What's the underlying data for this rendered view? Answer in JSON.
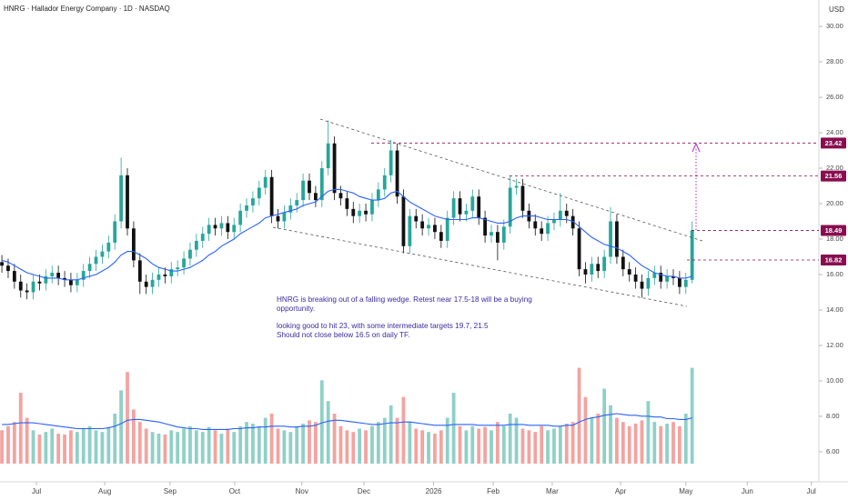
{
  "chart_data": {
    "type": "candlestick",
    "title": "HNRG · Hallador Energy Company · 1D · NASDAQ",
    "currency": "USD",
    "open": [
      16.7,
      16.5,
      16.2,
      15.6,
      15.1,
      15.0,
      15.6,
      15.5,
      15.9,
      16.1,
      15.8,
      15.7,
      15.4,
      15.7,
      16.2,
      16.6,
      17.0,
      17.3,
      17.8,
      19.0,
      21.6,
      18.6,
      16.8,
      15.6,
      15.3,
      15.7,
      16.0,
      15.9,
      16.3,
      16.4,
      16.9,
      17.4,
      17.9,
      18.3,
      18.8,
      18.6,
      18.9,
      18.4,
      18.8,
      19.6,
      19.9,
      20.3,
      20.9,
      21.5,
      19.3,
      19.0,
      19.5,
      19.9,
      20.2,
      21.3,
      20.6,
      20.2,
      22.0,
      23.4,
      20.6,
      20.3,
      19.7,
      19.3,
      19.6,
      19.4,
      20.2,
      20.8,
      21.6,
      23.0,
      20.4,
      17.6,
      19.3,
      19.0,
      18.6,
      18.8,
      18.4,
      17.9,
      19.2,
      20.3,
      19.4,
      19.6,
      20.4,
      19.2,
      18.2,
      18.4,
      17.8,
      18.7,
      20.9,
      21.0,
      19.6,
      19.0,
      18.6,
      18.3,
      18.9,
      19.1,
      19.6,
      19.3,
      18.6,
      16.3,
      16.0,
      16.6,
      16.2,
      17.0,
      19.0,
      17.0,
      16.3,
      16.0,
      15.6,
      15.2,
      15.8,
      16.1,
      15.6,
      15.9,
      15.8,
      15.3,
      15.7
    ],
    "high": [
      17.1,
      16.9,
      16.6,
      16.0,
      15.5,
      16.0,
      16.0,
      16.3,
      16.5,
      16.5,
      16.2,
      16.1,
      16.1,
      16.6,
      17.0,
      17.4,
      17.7,
      18.2,
      19.4,
      22.6,
      22.0,
      19.0,
      17.2,
      16.0,
      16.1,
      16.4,
      16.4,
      16.7,
      16.8,
      17.3,
      17.8,
      18.3,
      18.7,
      19.2,
      19.2,
      19.3,
      19.3,
      19.2,
      20.0,
      20.3,
      20.7,
      21.3,
      21.9,
      21.9,
      19.7,
      19.9,
      20.3,
      20.6,
      21.7,
      21.7,
      21.0,
      22.4,
      24.7,
      23.8,
      21.0,
      20.7,
      20.1,
      20.0,
      20.0,
      20.6,
      21.2,
      22.0,
      23.6,
      23.4,
      20.8,
      19.7,
      19.7,
      19.4,
      19.2,
      19.2,
      18.8,
      19.6,
      20.7,
      20.7,
      20.0,
      20.8,
      20.8,
      19.6,
      18.8,
      18.8,
      19.1,
      21.6,
      21.4,
      21.4,
      20.0,
      19.4,
      19.0,
      19.3,
      19.5,
      20.6,
      20.0,
      19.7,
      19.0,
      16.7,
      17.0,
      17.0,
      17.4,
      19.8,
      19.4,
      17.4,
      16.7,
      16.4,
      16.0,
      16.2,
      16.5,
      16.5,
      16.3,
      16.3,
      16.2,
      16.1,
      19.0
    ],
    "low": [
      16.1,
      15.8,
      15.2,
      14.7,
      14.6,
      14.6,
      15.1,
      15.1,
      15.5,
      15.4,
      15.3,
      15.0,
      15.0,
      15.3,
      15.8,
      16.2,
      16.6,
      16.9,
      17.4,
      18.6,
      18.2,
      16.4,
      14.9,
      14.9,
      14.9,
      15.3,
      15.5,
      15.5,
      15.9,
      16.0,
      16.5,
      17.0,
      17.5,
      17.9,
      18.2,
      18.2,
      18.0,
      18.0,
      18.4,
      19.2,
      19.5,
      19.9,
      20.5,
      18.9,
      18.6,
      18.6,
      19.1,
      19.5,
      19.8,
      20.2,
      19.8,
      19.8,
      21.6,
      20.2,
      19.9,
      19.3,
      18.9,
      18.9,
      19.0,
      19.0,
      19.8,
      20.4,
      21.2,
      20.0,
      17.2,
      17.2,
      18.6,
      18.2,
      18.2,
      18.0,
      17.5,
      17.5,
      18.8,
      19.0,
      19.0,
      19.2,
      18.8,
      17.8,
      17.8,
      16.8,
      17.4,
      18.3,
      20.5,
      19.2,
      18.6,
      18.2,
      17.9,
      17.9,
      18.5,
      18.7,
      18.9,
      18.2,
      15.9,
      15.5,
      15.6,
      15.8,
      15.8,
      16.6,
      16.6,
      15.9,
      15.6,
      15.2,
      14.7,
      14.8,
      15.4,
      15.2,
      15.2,
      15.4,
      14.9,
      14.9,
      15.5
    ],
    "close": [
      16.5,
      16.2,
      15.6,
      15.1,
      15.0,
      15.6,
      15.5,
      15.9,
      16.1,
      15.8,
      15.7,
      15.4,
      15.7,
      16.2,
      16.6,
      17.0,
      17.3,
      17.8,
      19.0,
      21.6,
      18.6,
      16.8,
      15.6,
      15.3,
      15.7,
      16.0,
      15.9,
      16.3,
      16.4,
      16.9,
      17.4,
      17.9,
      18.3,
      18.8,
      18.6,
      18.9,
      18.4,
      18.8,
      19.6,
      19.9,
      20.3,
      20.9,
      21.5,
      19.3,
      19.0,
      19.5,
      19.9,
      20.2,
      21.3,
      20.6,
      20.2,
      22.0,
      23.4,
      20.6,
      20.3,
      19.7,
      19.3,
      19.6,
      19.4,
      20.2,
      20.8,
      21.6,
      23.0,
      20.4,
      17.6,
      19.3,
      19.0,
      18.6,
      18.8,
      18.4,
      17.9,
      19.2,
      20.3,
      19.4,
      19.6,
      20.4,
      19.2,
      18.2,
      18.4,
      17.8,
      18.7,
      20.9,
      21.0,
      19.6,
      19.0,
      18.6,
      18.3,
      18.9,
      19.1,
      19.6,
      19.3,
      18.6,
      16.3,
      16.0,
      16.6,
      16.2,
      17.0,
      19.0,
      17.0,
      16.3,
      16.0,
      15.6,
      15.2,
      15.8,
      16.1,
      15.6,
      15.9,
      15.8,
      15.3,
      15.7,
      18.49
    ],
    "ma": [
      16.8,
      16.7,
      16.5,
      16.3,
      16.1,
      16.0,
      15.9,
      15.8,
      15.8,
      15.8,
      15.7,
      15.7,
      15.7,
      15.8,
      15.9,
      16.0,
      16.2,
      16.4,
      16.7,
      17.1,
      17.3,
      17.3,
      17.1,
      16.9,
      16.6,
      16.4,
      16.3,
      16.2,
      16.2,
      16.3,
      16.4,
      16.6,
      16.8,
      17.1,
      17.3,
      17.6,
      17.8,
      18.0,
      18.3,
      18.5,
      18.7,
      18.9,
      19.2,
      19.3,
      19.4,
      19.5,
      19.6,
      19.7,
      19.9,
      20.0,
      20.1,
      20.4,
      20.7,
      20.8,
      20.8,
      20.7,
      20.6,
      20.4,
      20.3,
      20.2,
      20.2,
      20.3,
      20.6,
      20.7,
      20.4,
      20.1,
      19.9,
      19.7,
      19.5,
      19.3,
      19.2,
      19.1,
      19.1,
      19.1,
      19.1,
      19.2,
      19.2,
      19.1,
      19.0,
      18.9,
      18.9,
      19.0,
      19.2,
      19.3,
      19.3,
      19.3,
      19.2,
      19.1,
      19.1,
      19.1,
      19.1,
      19.0,
      18.7,
      18.4,
      18.1,
      17.9,
      17.7,
      17.6,
      17.5,
      17.3,
      17.1,
      16.8,
      16.5,
      16.3,
      16.1,
      16.0,
      15.9,
      15.9,
      15.8,
      15.8,
      15.9
    ],
    "volume": [
      40,
      45,
      50,
      85,
      55,
      40,
      35,
      38,
      42,
      36,
      35,
      40,
      38,
      42,
      45,
      40,
      38,
      44,
      60,
      88,
      110,
      65,
      50,
      42,
      38,
      36,
      35,
      40,
      38,
      42,
      45,
      40,
      38,
      44,
      40,
      36,
      42,
      38,
      45,
      50,
      48,
      45,
      55,
      60,
      42,
      40,
      38,
      45,
      48,
      52,
      50,
      100,
      75,
      60,
      45,
      40,
      38,
      42,
      40,
      45,
      50,
      55,
      70,
      55,
      80,
      50,
      42,
      40,
      38,
      36,
      40,
      55,
      85,
      45,
      40,
      45,
      42,
      44,
      40,
      50,
      45,
      60,
      55,
      42,
      40,
      38,
      45,
      40,
      42,
      45,
      48,
      50,
      115,
      80,
      55,
      60,
      90,
      70,
      55,
      50,
      45,
      48,
      52,
      75,
      50,
      45,
      48,
      50,
      45,
      60,
      115
    ],
    "volume_ma": [
      47,
      47,
      48,
      49,
      49,
      49,
      48,
      47,
      46,
      45,
      44,
      43,
      42,
      42,
      42,
      42,
      42,
      43,
      45,
      48,
      52,
      53,
      53,
      52,
      51,
      50,
      48,
      46,
      44,
      43,
      42,
      42,
      41,
      41,
      41,
      41,
      41,
      42,
      42,
      43,
      43,
      44,
      44,
      45,
      45,
      45,
      44,
      44,
      45,
      45,
      46,
      49,
      51,
      52,
      52,
      51,
      50,
      49,
      48,
      47,
      47,
      48,
      49,
      49,
      50,
      50,
      49,
      48,
      47,
      46,
      46,
      46,
      47,
      47,
      47,
      47,
      46,
      46,
      46,
      46,
      46,
      47,
      47,
      47,
      46,
      46,
      46,
      46,
      45,
      45,
      46,
      46,
      50,
      53,
      55,
      56,
      58,
      59,
      60,
      59,
      58,
      58,
      57,
      57,
      56,
      56,
      54,
      54,
      53,
      53,
      55
    ],
    "xlim": [
      -0.3,
      130.2
    ],
    "xticks": [
      {
        "value": 5.5,
        "label": "Jul"
      },
      {
        "value": 16.4,
        "label": "Aug"
      },
      {
        "value": 26.8,
        "label": "Sep"
      },
      {
        "value": 37.1,
        "label": "Oct"
      },
      {
        "value": 47.8,
        "label": "Nov"
      },
      {
        "value": 57.7,
        "label": "Dec"
      },
      {
        "value": 68.8,
        "label": "2026"
      },
      {
        "value": 78.3,
        "label": "Feb"
      },
      {
        "value": 87.7,
        "label": "Mar"
      },
      {
        "value": 98.6,
        "label": "Apr"
      },
      {
        "value": 109,
        "label": "May"
      },
      {
        "value": 118.8,
        "label": "Jun"
      },
      {
        "value": 129,
        "label": "Jul"
      }
    ],
    "ylim": [
      5.33,
      31.49
    ],
    "yticks": [
      {
        "value": 6,
        "label": "6.00"
      },
      {
        "value": 8,
        "label": "8.00"
      },
      {
        "value": 10,
        "label": "10.00"
      },
      {
        "value": 12,
        "label": "12.00"
      },
      {
        "value": 14,
        "label": "14.00"
      },
      {
        "value": 16,
        "label": "16.00"
      },
      {
        "value": 18,
        "label": "18.00"
      },
      {
        "value": 20,
        "label": "20.00"
      },
      {
        "value": 22,
        "label": "22.00"
      },
      {
        "value": 24,
        "label": "24.00"
      },
      {
        "value": 26,
        "label": "26.00"
      },
      {
        "value": 28,
        "label": "28.00"
      },
      {
        "value": 30,
        "label": "30.00"
      }
    ],
    "levels": [
      23.42,
      21.56,
      18.49,
      16.82
    ],
    "annotation": [
      "HNRG is breaking out of a falling wedge. Retest near 17.5-18 will be a buying",
      "opportunity.",
      "looking good to hit 23, with some intermediate targets 19.7, 21.5",
      "Should not close below 16.5 on daily TF."
    ],
    "up_color": "#26a69a",
    "down_color": "#111111",
    "up_volume_color": "#8fd0c7",
    "down_volume_color": "#f3a3a0",
    "ma_color": "#2962ff",
    "level_color": "#880e4f",
    "annotation_color": "#3d2a9e"
  }
}
